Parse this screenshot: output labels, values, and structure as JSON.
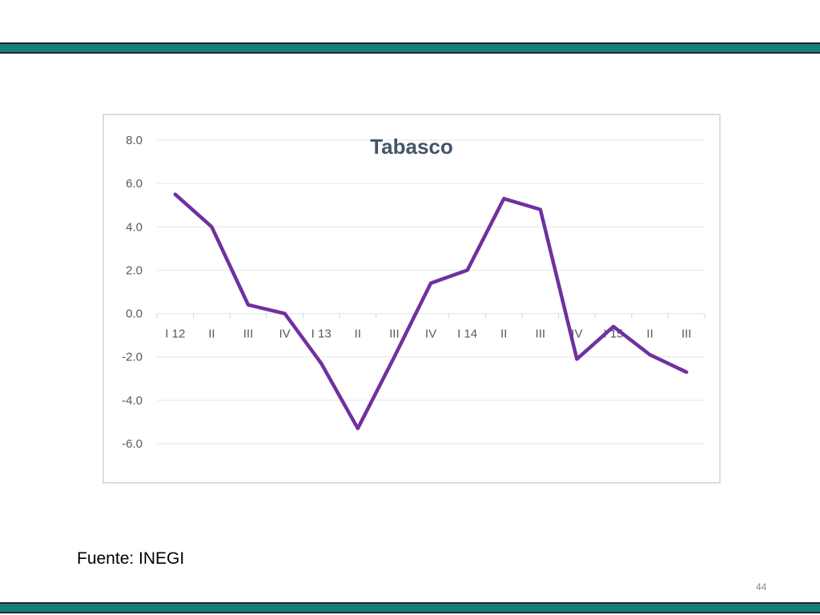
{
  "colors": {
    "band": "#177f7a",
    "line": "#7030a0",
    "grid": "#e3e6ea",
    "tick_text": "#595959",
    "title": "#44546a"
  },
  "footer": {
    "source": "Fuente: INEGI",
    "page_number": "44"
  },
  "chart_data": {
    "type": "line",
    "title": "Tabasco",
    "xlabel": "",
    "ylabel": "",
    "ylim": [
      -6.0,
      8.0
    ],
    "yticks": [
      "8.0",
      "6.0",
      "4.0",
      "2.0",
      "0.0",
      "-2.0",
      "-4.0",
      "-6.0"
    ],
    "grid": true,
    "legend": "none",
    "categories": [
      "I 12",
      "II",
      "III",
      "IV",
      "I 13",
      "II",
      "III",
      "IV",
      "I 14",
      "II",
      "III",
      "IV",
      "I 15",
      "II",
      "III"
    ],
    "series": [
      {
        "values": [
          5.5,
          4.0,
          0.4,
          0.0,
          -2.3,
          -5.3,
          -2.0,
          1.4,
          2.0,
          5.3,
          4.8,
          -2.1,
          -0.6,
          -1.9,
          -2.7
        ]
      }
    ]
  }
}
